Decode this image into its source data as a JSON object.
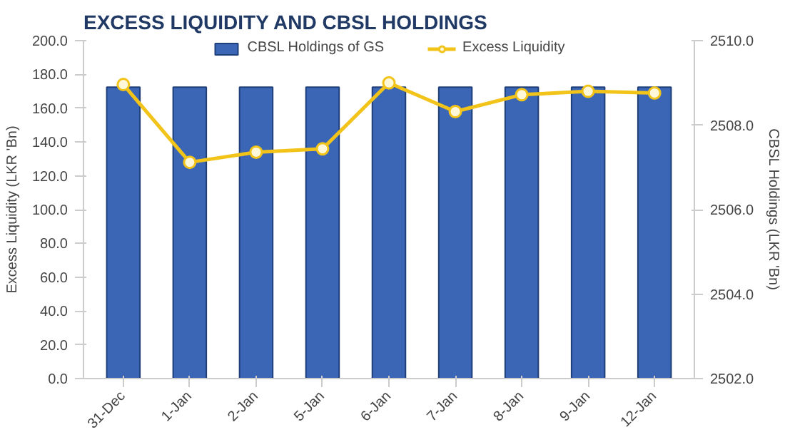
{
  "chart_data": {
    "type": "bar",
    "title": "EXCESS LIQUIDITY AND CBSL HOLDINGS",
    "ylabel": "Excess Liquidity (LKR 'Bn)",
    "y2label": "CBSL Holdings (LKR 'Bn)",
    "categories": [
      "31-Dec",
      "1-Jan",
      "2-Jan",
      "5-Jan",
      "6-Jan",
      "7-Jan",
      "8-Jan",
      "9-Jan",
      "12-Jan"
    ],
    "series": [
      {
        "name": "CBSL Holdings of GS",
        "axis": "y2",
        "color": "#3a66b5",
        "values": [
          2508.9,
          2508.9,
          2508.9,
          2508.9,
          2508.9,
          2508.9,
          2508.9,
          2508.9,
          2508.9
        ]
      },
      {
        "name": "Excess Liquidity",
        "type": "line",
        "color": "#f2c318",
        "marker": "circle",
        "line_style": "solid",
        "values": [
          174,
          128,
          134,
          136,
          175,
          158,
          168,
          170,
          169
        ]
      }
    ],
    "ylim": [
      0,
      200
    ],
    "yticks": [
      {
        "value": 0,
        "label": "0.0"
      },
      {
        "value": 20,
        "label": "20.0"
      },
      {
        "value": 40,
        "label": "40.0"
      },
      {
        "value": 60,
        "label": "60.0"
      },
      {
        "value": 80,
        "label": "80.0"
      },
      {
        "value": 100,
        "label": "100.0"
      },
      {
        "value": 120,
        "label": "120.0"
      },
      {
        "value": 140,
        "label": "140.0"
      },
      {
        "value": 160,
        "label": "160.0"
      },
      {
        "value": 180,
        "label": "180.0"
      },
      {
        "value": 200,
        "label": "200.0"
      }
    ],
    "y2lim": [
      2502,
      2510
    ],
    "y2ticks": [
      {
        "value": 2502,
        "label": "2502.0"
      },
      {
        "value": 2504,
        "label": "2504.0"
      },
      {
        "value": 2506,
        "label": "2506.0"
      },
      {
        "value": 2508,
        "label": "2508.0"
      },
      {
        "value": 2510,
        "label": "2510.0"
      }
    ],
    "legend": "top",
    "grid": false
  }
}
